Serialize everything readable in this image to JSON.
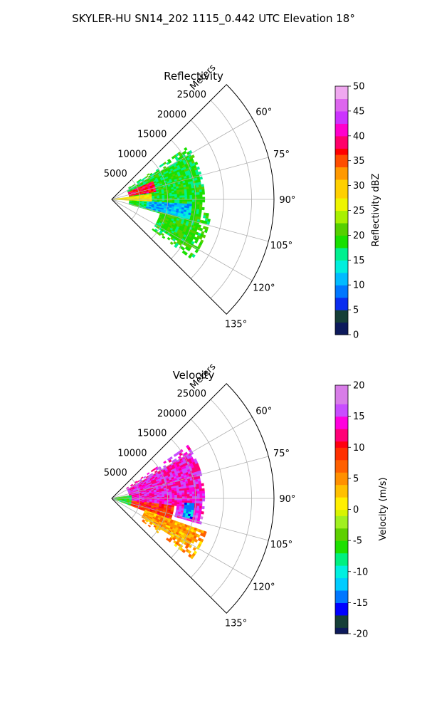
{
  "figure": {
    "title": "SKYLER-HU  SN14_202  1115_0.442 UTC Elevation 18°"
  },
  "chart_data": [
    {
      "type": "heatmap",
      "title": "Reflectivity",
      "projection": "polar-sector",
      "theta_ticks_deg": [
        60,
        75,
        90,
        105,
        120,
        135
      ],
      "theta_tick_labels": [
        "60°",
        "75°",
        "90°",
        "105°",
        "120°",
        "135°"
      ],
      "theta_range_deg": [
        45,
        135
      ],
      "r_ticks": [
        5000,
        10000,
        15000,
        20000,
        25000
      ],
      "r_tick_labels": [
        "5000",
        "10000",
        "15000",
        "20000",
        "25000"
      ],
      "r_max": 29000,
      "r_label": "Meters",
      "grid": true,
      "colorbar": {
        "label": "Reflectivity dBZ",
        "range": [
          0,
          50
        ],
        "ticks": [
          "0",
          "5",
          "10",
          "15",
          "20",
          "25",
          "30",
          "35",
          "40",
          "45",
          "50"
        ]
      },
      "regions": [
        {
          "theta": [
            55,
            106
          ],
          "r": [
            3000,
            16500
          ],
          "value": 18
        },
        {
          "theta": [
            98,
            126
          ],
          "r": [
            9000,
            18000
          ],
          "value": 19
        },
        {
          "theta": [
            93,
            104
          ],
          "r": [
            6000,
            14000
          ],
          "value": 11
        },
        {
          "theta": [
            65,
            80
          ],
          "r": [
            3000,
            8000
          ],
          "value": 38
        },
        {
          "theta": [
            81,
            92
          ],
          "r": [
            0,
            7000
          ],
          "value": 28
        }
      ],
      "extent": {
        "theta": [
          55,
          126
        ],
        "r": [
          0,
          18000
        ]
      }
    },
    {
      "type": "heatmap",
      "title": "Velocity",
      "projection": "polar-sector",
      "theta_ticks_deg": [
        60,
        75,
        90,
        105,
        120,
        135
      ],
      "theta_tick_labels": [
        "60°",
        "75°",
        "90°",
        "105°",
        "120°",
        "135°"
      ],
      "theta_range_deg": [
        45,
        135
      ],
      "r_ticks": [
        5000,
        10000,
        15000,
        20000,
        25000
      ],
      "r_tick_labels": [
        "5000",
        "10000",
        "15000",
        "20000",
        "25000"
      ],
      "r_max": 29000,
      "r_label": "Meters",
      "grid": true,
      "colorbar": {
        "label": "Velocity (m/s)",
        "range": [
          -20,
          20
        ],
        "ticks": [
          "-20",
          "-15",
          "-10",
          "-5",
          "0",
          "5",
          "10",
          "15",
          "20"
        ]
      },
      "regions": [
        {
          "theta": [
            55,
            95
          ],
          "r": [
            3000,
            16500
          ],
          "value": 14
        },
        {
          "theta": [
            95,
            110
          ],
          "r": [
            3000,
            11000
          ],
          "value": 9
        },
        {
          "theta": [
            108,
            126
          ],
          "r": [
            6000,
            18000
          ],
          "value": 4
        },
        {
          "theta": [
            95,
            106
          ],
          "r": [
            11500,
            16500
          ],
          "value": 15
        },
        {
          "theta": [
            93,
            104
          ],
          "r": [
            13000,
            14500
          ],
          "value": -13
        },
        {
          "theta": [
            80,
            110
          ],
          "r": [
            0,
            3500
          ],
          "value": -6
        }
      ],
      "extent": {
        "theta": [
          55,
          126
        ],
        "r": [
          0,
          18000
        ]
      }
    }
  ]
}
